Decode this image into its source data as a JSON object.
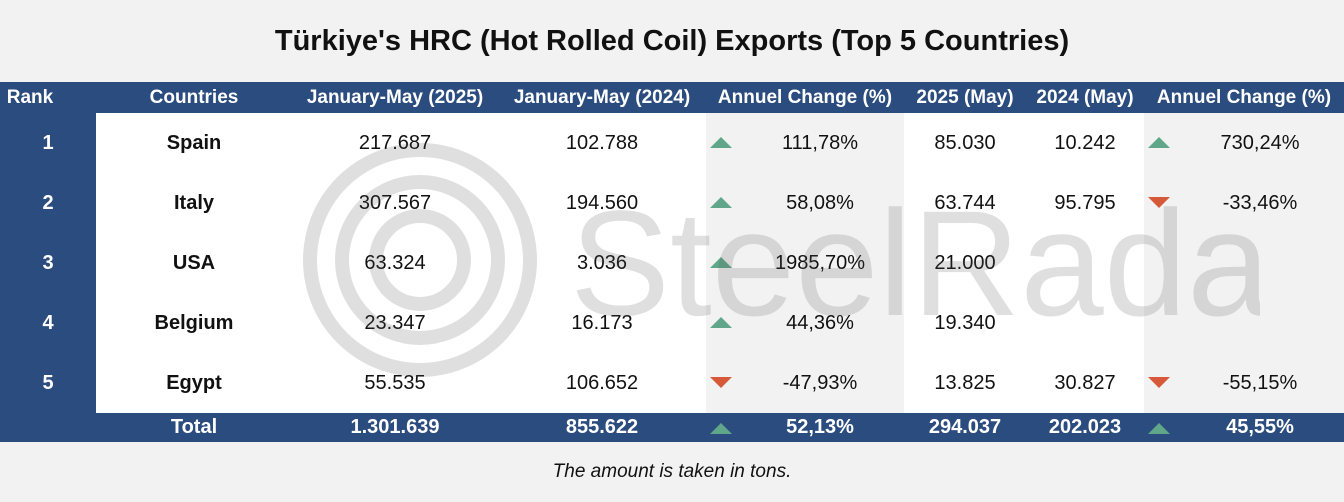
{
  "title": "Türkiye's HRC (Hot Rolled Coil) Exports (Top 5 Countries)",
  "headers": [
    "Rank",
    "Countries",
    "January-May (2025)",
    "January-May (2024)",
    "Annuel Change (%)",
    "2025 (May)",
    "2024 (May)",
    "Annuel Change (%)"
  ],
  "rows": [
    {
      "rank": "1",
      "country": "Spain",
      "jm2025": "217.687",
      "jm2024": "102.788",
      "ann_dir": "up",
      "ann": "111,78%",
      "may2025": "85.030",
      "may2024": "10.242",
      "may_dir": "up",
      "may_chg": "730,24%"
    },
    {
      "rank": "2",
      "country": "Italy",
      "jm2025": "307.567",
      "jm2024": "194.560",
      "ann_dir": "up",
      "ann": "58,08%",
      "may2025": "63.744",
      "may2024": "95.795",
      "may_dir": "down",
      "may_chg": "-33,46%"
    },
    {
      "rank": "3",
      "country": "USA",
      "jm2025": "63.324",
      "jm2024": "3.036",
      "ann_dir": "up",
      "ann": "1985,70%",
      "may2025": "21.000",
      "may2024": "",
      "may_dir": "",
      "may_chg": ""
    },
    {
      "rank": "4",
      "country": "Belgium",
      "jm2025": "23.347",
      "jm2024": "16.173",
      "ann_dir": "up",
      "ann": "44,36%",
      "may2025": "19.340",
      "may2024": "",
      "may_dir": "",
      "may_chg": ""
    },
    {
      "rank": "5",
      "country": "Egypt",
      "jm2025": "55.535",
      "jm2024": "106.652",
      "ann_dir": "down",
      "ann": "-47,93%",
      "may2025": "13.825",
      "may2024": "30.827",
      "may_dir": "down",
      "may_chg": "-55,15%"
    }
  ],
  "total": {
    "label": "Total",
    "jm2025": "1.301.639",
    "jm2024": "855.622",
    "ann_dir": "up",
    "ann": "52,13%",
    "may2025": "294.037",
    "may2024": "202.023",
    "may_dir": "up",
    "may_chg": "45,55%"
  },
  "footnote": "The amount is taken in tons.",
  "watermark_text": "SteelRadar",
  "colors": {
    "header_bg": "#2b4c7e",
    "up": "#5fa68a",
    "down": "#d65a3a"
  }
}
